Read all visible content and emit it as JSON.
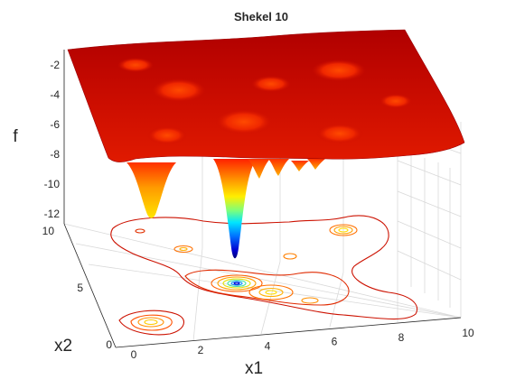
{
  "chart_data": {
    "type": "surface",
    "title": "Shekel 10",
    "xlabel": "x1",
    "ylabel": "x2",
    "zlabel": "f",
    "xlim": [
      0,
      10
    ],
    "ylim": [
      0,
      10
    ],
    "zlim": [
      -12,
      0
    ],
    "xticks": [
      "0",
      "2",
      "4",
      "6",
      "8",
      "10"
    ],
    "yticks": [
      "0",
      "5",
      "10"
    ],
    "zticks": [
      "-2",
      "-4",
      "-6",
      "-8",
      "-10",
      "-12"
    ],
    "colormap": "jet",
    "has_contour_projection": true,
    "grid": true,
    "minima": [
      {
        "x1": 4.0,
        "x2": 4.0,
        "f": -10.5
      },
      {
        "x1": 1.0,
        "x2": 1.0,
        "f": -5.2
      },
      {
        "x1": 8.0,
        "x2": 8.0,
        "f": -3.0
      },
      {
        "x1": 6.0,
        "x2": 6.0,
        "f": -2.6
      },
      {
        "x1": 3.0,
        "x2": 7.0,
        "f": -2.8
      },
      {
        "x1": 2.0,
        "x2": 9.0,
        "f": -2.1
      },
      {
        "x1": 5.0,
        "x2": 5.0,
        "f": -2.3
      },
      {
        "x1": 8.0,
        "x2": 1.0,
        "f": -2.4
      },
      {
        "x1": 6.0,
        "x2": 2.0,
        "f": -2.3
      },
      {
        "x1": 7.0,
        "x2": 3.6,
        "f": -2.2
      }
    ]
  }
}
